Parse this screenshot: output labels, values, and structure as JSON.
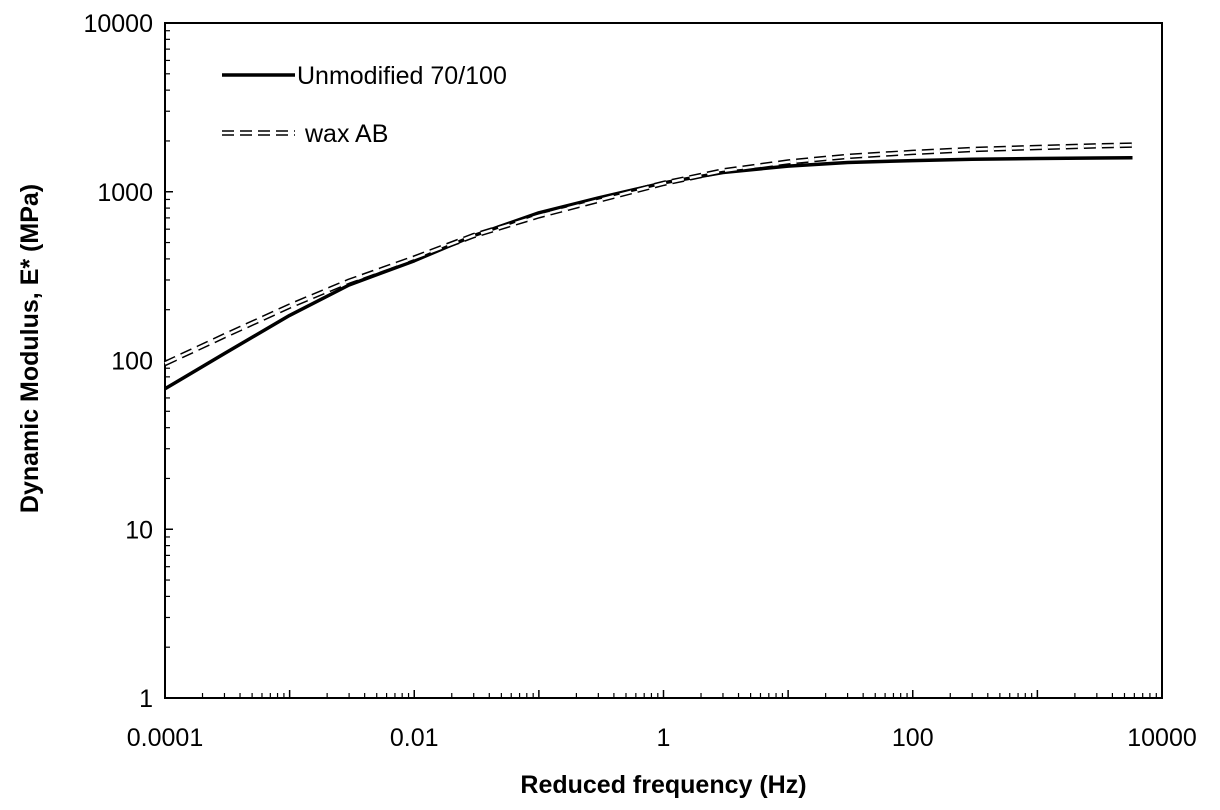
{
  "chart_data": {
    "type": "line",
    "title": "",
    "xlabel": "Reduced frequency  (Hz)",
    "ylabel": "Dynamic Modulus, E*  (MPa)",
    "xscale": "log",
    "yscale": "log",
    "xlim": [
      0.0001,
      10000
    ],
    "ylim": [
      1,
      10000
    ],
    "x_ticks": [
      "0.0001",
      "0.01",
      "1",
      "100",
      "10000"
    ],
    "y_ticks": [
      "1",
      "10",
      "100",
      "1000",
      "10000"
    ],
    "grid": false,
    "legend_position": "top-left",
    "series": [
      {
        "name": "Unmodified 70/100",
        "style": "solid",
        "color": "#000000",
        "x": [
          0.0001,
          0.0003,
          0.001,
          0.003,
          0.01,
          0.03,
          0.1,
          0.3,
          1,
          3,
          10,
          30,
          100,
          300,
          1000,
          3000,
          5800
        ],
        "y": [
          68,
          110,
          185,
          280,
          390,
          550,
          750,
          920,
          1130,
          1300,
          1420,
          1490,
          1530,
          1560,
          1575,
          1585,
          1590
        ]
      },
      {
        "name": "wax AB",
        "style": "dashed",
        "color": "#000000",
        "x": [
          0.0001,
          0.0003,
          0.001,
          0.003,
          0.01,
          0.03,
          0.1,
          0.3,
          1,
          3,
          10,
          30,
          100,
          300,
          1000,
          3000,
          5800
        ],
        "y": [
          96,
          140,
          210,
          295,
          405,
          550,
          720,
          890,
          1120,
          1330,
          1500,
          1620,
          1710,
          1780,
          1830,
          1870,
          1890
        ]
      }
    ]
  }
}
